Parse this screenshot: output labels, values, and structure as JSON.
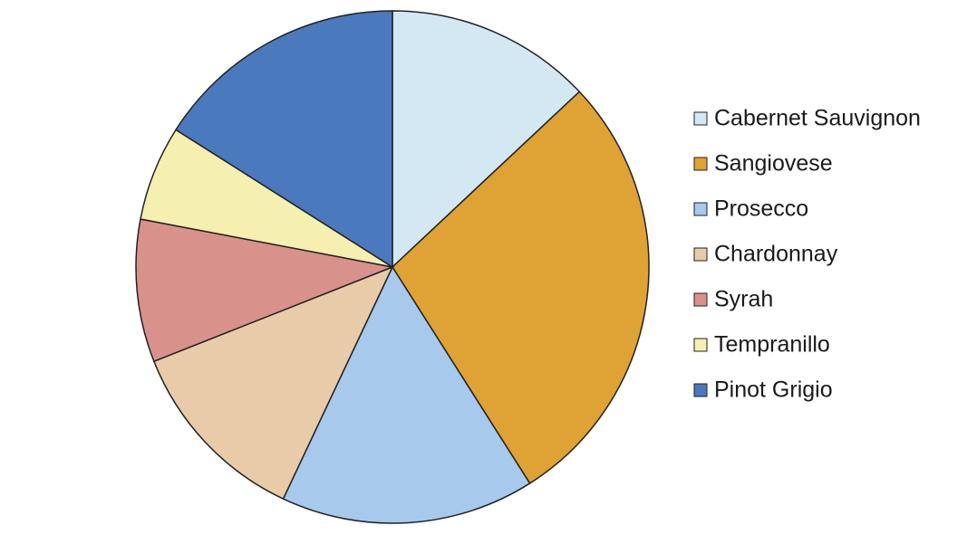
{
  "chart_data": {
    "type": "pie",
    "categories": [
      "Cabernet Sauvignon",
      "Sangiovese",
      "Prosecco",
      "Chardonnay",
      "Syrah",
      "Tempranillo",
      "Pinot Grigio"
    ],
    "values": [
      13,
      28,
      16,
      12,
      9,
      6,
      16
    ],
    "colors": [
      "#d4e8f4",
      "#dea235",
      "#a6c9ec",
      "#e8cba8",
      "#d9918c",
      "#f5efb0",
      "#4a79bd"
    ],
    "legend": "right"
  }
}
